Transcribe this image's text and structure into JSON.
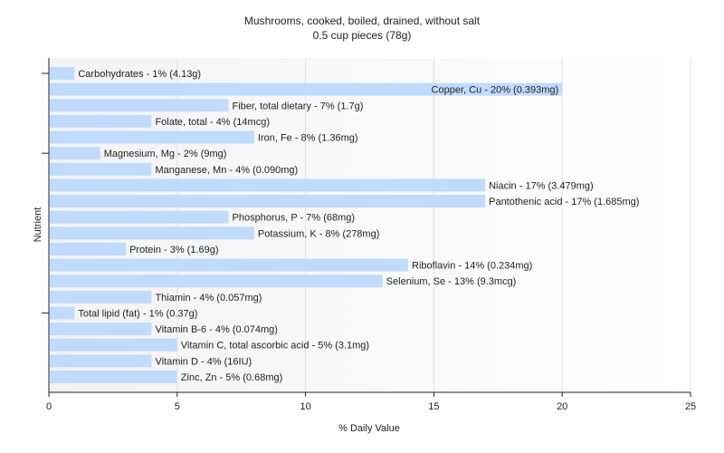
{
  "chart_data": {
    "type": "bar",
    "orientation": "horizontal",
    "title": "Mushrooms, cooked, boiled, drained, without salt",
    "subtitle": "0.5 cup pieces (78g)",
    "xlabel": "% Daily Value",
    "ylabel": "Nutrient",
    "xlim": [
      0,
      25
    ],
    "xticks": [
      0,
      5,
      10,
      15,
      20,
      25
    ],
    "grid": true,
    "bar_color": "#bfdbfe",
    "categories": [
      "Carbohydrates",
      "Copper, Cu",
      "Fiber, total dietary",
      "Folate, total",
      "Iron, Fe",
      "Magnesium, Mg",
      "Manganese, Mn",
      "Niacin",
      "Pantothenic acid",
      "Phosphorus, P",
      "Potassium, K",
      "Protein",
      "Riboflavin",
      "Selenium, Se",
      "Thiamin",
      "Total lipid (fat)",
      "Vitamin B-6",
      "Vitamin C, total ascorbic acid",
      "Vitamin D",
      "Zinc, Zn"
    ],
    "values": [
      1,
      20,
      7,
      4,
      8,
      2,
      4,
      17,
      17,
      7,
      8,
      3,
      14,
      13,
      4,
      1,
      4,
      5,
      4,
      5
    ],
    "labels": [
      "Carbohydrates - 1% (4.13g)",
      "Copper, Cu - 20% (0.393mg)",
      "Fiber, total dietary - 7% (1.7g)",
      "Folate, total - 4% (14mcg)",
      "Iron, Fe - 8% (1.36mg)",
      "Magnesium, Mg - 2% (9mg)",
      "Manganese, Mn - 4% (0.090mg)",
      "Niacin - 17% (3.479mg)",
      "Pantothenic acid - 17% (1.685mg)",
      "Phosphorus, P - 7% (68mg)",
      "Potassium, K - 8% (278mg)",
      "Protein - 3% (1.69g)",
      "Riboflavin - 14% (0.234mg)",
      "Selenium, Se - 13% (9.3mcg)",
      "Thiamin - 4% (0.057mg)",
      "Total lipid (fat) - 1% (0.37g)",
      "Vitamin B-6 - 4% (0.074mg)",
      "Vitamin C, total ascorbic acid - 5% (3.1mg)",
      "Vitamin D - 4% (16IU)",
      "Zinc, Zn - 5% (0.68mg)"
    ]
  }
}
